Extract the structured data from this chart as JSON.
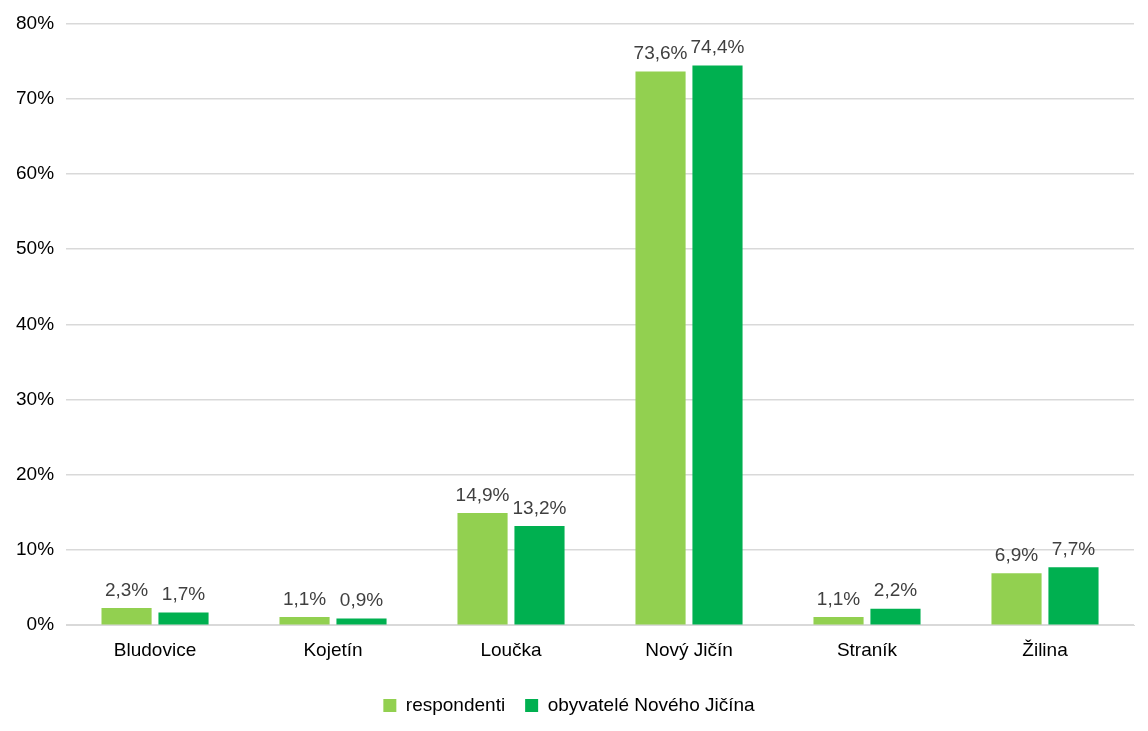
{
  "chart_data": {
    "type": "bar",
    "categories": [
      "Bludovice",
      "Kojetín",
      "Loučka",
      "Nový Jičín",
      "Straník",
      "Žilina"
    ],
    "series": [
      {
        "name": "respondenti",
        "color": "#92d050",
        "values": [
          2.3,
          1.1,
          14.9,
          73.6,
          1.1,
          6.9
        ],
        "value_labels": [
          "2,3%",
          "1,1%",
          "14,9%",
          "73,6%",
          "1,1%",
          "6,9%"
        ]
      },
      {
        "name": "obyvatelé Nového Jičína",
        "color": "#00b050",
        "values": [
          1.7,
          0.9,
          13.2,
          74.4,
          2.2,
          7.7
        ],
        "value_labels": [
          "1,7%",
          "0,9%",
          "13,2%",
          "74,4%",
          "2,2%",
          "7,7%"
        ]
      }
    ],
    "ylim": [
      0,
      80
    ],
    "yticks": [
      {
        "value": 0,
        "label": "0%"
      },
      {
        "value": 10,
        "label": "10%"
      },
      {
        "value": 20,
        "label": "20%"
      },
      {
        "value": 30,
        "label": "30%"
      },
      {
        "value": 40,
        "label": "40%"
      },
      {
        "value": 50,
        "label": "50%"
      },
      {
        "value": 60,
        "label": "60%"
      },
      {
        "value": 70,
        "label": "70%"
      },
      {
        "value": 80,
        "label": "80%"
      }
    ],
    "grid": "y",
    "legend": "bottom"
  }
}
